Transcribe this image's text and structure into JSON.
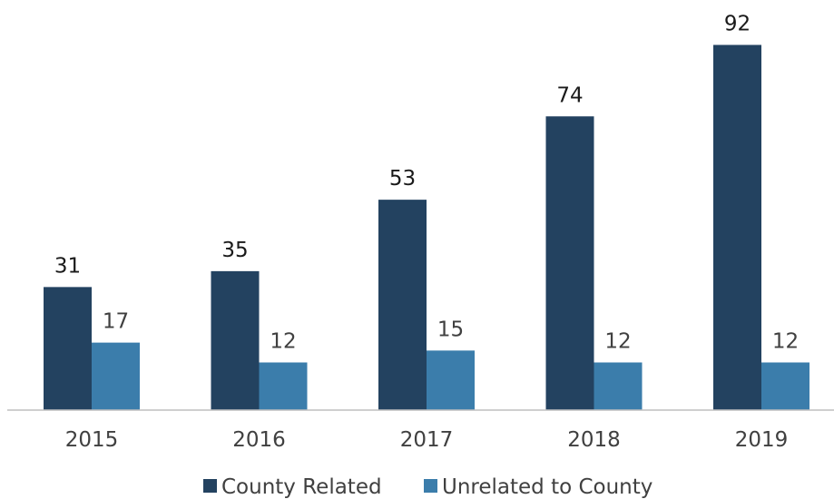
{
  "chart_data": {
    "type": "bar",
    "categories": [
      "2015",
      "2016",
      "2017",
      "2018",
      "2019"
    ],
    "series": [
      {
        "name": "County Related",
        "values": [
          31,
          35,
          53,
          74,
          92
        ],
        "color": "#234260"
      },
      {
        "name": "Unrelated to County",
        "values": [
          17,
          12,
          15,
          12,
          12
        ],
        "color": "#3b7dab"
      }
    ],
    "title": "",
    "xlabel": "",
    "ylabel": "",
    "ylim": [
      0,
      100
    ],
    "grid": false,
    "legend": "bottom",
    "data_labels": true
  }
}
